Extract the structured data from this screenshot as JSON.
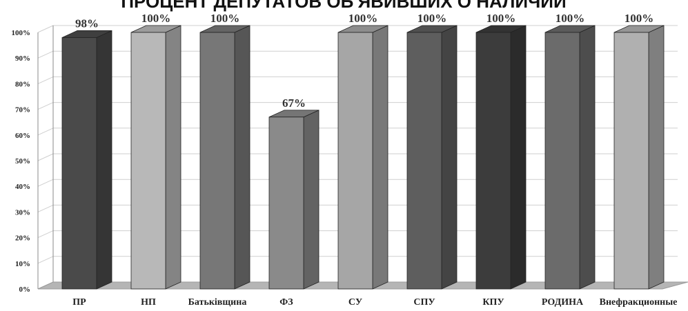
{
  "chart_data": {
    "type": "bar",
    "title": "ПРОЦЕНТ ДЕПУТАТОВ ОБ'ЯВИВШИХ О НАЛИЧИИ",
    "xlabel": "",
    "ylabel": "",
    "ylim": [
      0,
      100
    ],
    "yticks": [
      "0%",
      "10%",
      "20%",
      "30%",
      "40%",
      "50%",
      "60%",
      "70%",
      "80%",
      "90%",
      "100%"
    ],
    "categories": [
      "ПР",
      "НП",
      "Батьківщина",
      "ФЗ",
      "СУ",
      "СПУ",
      "КПУ",
      "РОДИНА",
      "Внефракционные"
    ],
    "values": [
      98,
      100,
      100,
      67,
      100,
      100,
      100,
      100,
      100
    ],
    "data_labels": [
      "98%",
      "100%",
      "100%",
      "67%",
      "100%",
      "100%",
      "100%",
      "100%",
      "100%"
    ],
    "bar_colors": [
      "#4a4a4a",
      "#b8b8b8",
      "#777777",
      "#8a8a8a",
      "#a6a6a6",
      "#5e5e5e",
      "#3c3c3c",
      "#6b6b6b",
      "#b0b0b0"
    ],
    "grid": true,
    "legend": "none"
  }
}
